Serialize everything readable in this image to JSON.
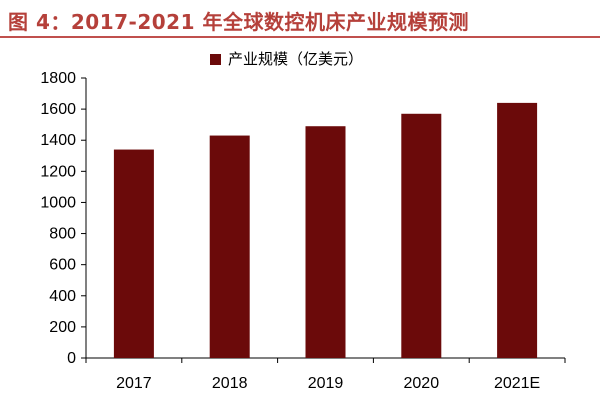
{
  "header": {
    "title": "图 4：2017-2021 年全球数控机床产业规模预测"
  },
  "colors": {
    "bar": "#6B0A0A",
    "title": "#B5403A",
    "rule": "#C0504D",
    "axis": "#000000"
  },
  "chart_data": {
    "type": "bar",
    "title": "",
    "categories": [
      "2017",
      "2018",
      "2019",
      "2020",
      "2021E"
    ],
    "series": [
      {
        "name": "产业规模（亿美元）",
        "values": [
          1340,
          1430,
          1490,
          1570,
          1640
        ]
      }
    ],
    "xlabel": "",
    "ylabel": "",
    "ylim": [
      0,
      1800
    ],
    "yticks": [
      0,
      200,
      400,
      600,
      800,
      1000,
      1200,
      1400,
      1600,
      1800
    ],
    "grid": false,
    "legend": "top-center"
  }
}
